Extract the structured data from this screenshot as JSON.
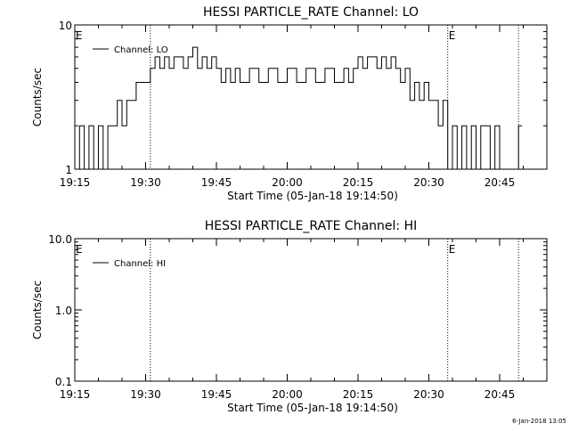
{
  "colors": {
    "background": "#ffffff",
    "foreground": "#000000"
  },
  "footer": {
    "timestamp": "6-Jan-2018 13:05"
  },
  "chart_data": [
    {
      "type": "line",
      "title": "HESSI PARTICLE_RATE Channel: LO",
      "xlabel": "Start Time (05-Jan-18 19:14:50)",
      "ylabel": "Counts/sec",
      "y_scale": "log",
      "xlim": [
        "19:15",
        "20:55"
      ],
      "ylim": [
        1,
        10
      ],
      "x_ticks": [
        "19:15",
        "19:30",
        "19:45",
        "20:00",
        "20:15",
        "20:30",
        "20:45"
      ],
      "y_ticks": [
        "1",
        "10"
      ],
      "legend": {
        "placement": "top-left",
        "entries": [
          "Channel: LO"
        ]
      },
      "markers": [
        {
          "label": "E",
          "x": "19:15"
        },
        {
          "label": "",
          "x": "19:31"
        },
        {
          "label": "E",
          "x": "20:34"
        },
        {
          "label": "",
          "x": "20:49"
        }
      ],
      "series": [
        {
          "name": "Channel: LO",
          "x": [
            "19:15",
            "19:16",
            "19:17",
            "19:18",
            "19:19",
            "19:20",
            "19:21",
            "19:22",
            "19:23",
            "19:24",
            "19:25",
            "19:26",
            "19:27",
            "19:28",
            "19:29",
            "19:30",
            "19:31",
            "19:32",
            "19:33",
            "19:34",
            "19:35",
            "19:36",
            "19:37",
            "19:38",
            "19:39",
            "19:40",
            "19:41",
            "19:42",
            "19:43",
            "19:44",
            "19:45",
            "19:46",
            "19:47",
            "19:48",
            "19:49",
            "19:50",
            "19:52",
            "19:54",
            "19:56",
            "19:58",
            "20:00",
            "20:02",
            "20:04",
            "20:06",
            "20:08",
            "20:10",
            "20:12",
            "20:13",
            "20:14",
            "20:15",
            "20:16",
            "20:17",
            "20:18",
            "20:19",
            "20:20",
            "20:21",
            "20:22",
            "20:23",
            "20:24",
            "20:25",
            "20:26",
            "20:27",
            "20:28",
            "20:29",
            "20:30",
            "20:31",
            "20:32",
            "20:33",
            "20:34",
            "20:35",
            "20:36",
            "20:37",
            "20:38",
            "20:39",
            "20:40",
            "20:41",
            "20:42",
            "20:43",
            "20:44",
            "20:45",
            "20:46",
            "20:47",
            "20:48",
            "20:49"
          ],
          "values": [
            1,
            2,
            1,
            2,
            1,
            2,
            1,
            2,
            2,
            3,
            2,
            3,
            3,
            4,
            4,
            4,
            5,
            6,
            5,
            6,
            5,
            6,
            6,
            5,
            6,
            7,
            5,
            6,
            5,
            6,
            5,
            4,
            5,
            4,
            5,
            4,
            5,
            4,
            5,
            4,
            5,
            4,
            5,
            4,
            5,
            4,
            5,
            4,
            5,
            6,
            5,
            6,
            6,
            5,
            6,
            5,
            6,
            5,
            4,
            5,
            3,
            4,
            3,
            4,
            3,
            3,
            2,
            3,
            1,
            2,
            1,
            2,
            1,
            2,
            1,
            2,
            2,
            1,
            2,
            1,
            1,
            1,
            1,
            2
          ]
        }
      ]
    },
    {
      "type": "line",
      "title": "HESSI PARTICLE_RATE Channel: HI",
      "xlabel": "Start Time (05-Jan-18 19:14:50)",
      "ylabel": "Counts/sec",
      "y_scale": "log",
      "xlim": [
        "19:15",
        "20:55"
      ],
      "ylim": [
        0.1,
        10
      ],
      "x_ticks": [
        "19:15",
        "19:30",
        "19:45",
        "20:00",
        "20:15",
        "20:30",
        "20:45"
      ],
      "y_ticks": [
        "0.1",
        "1.0",
        "10.0"
      ],
      "legend": {
        "placement": "top-left",
        "entries": [
          "Channel: HI"
        ]
      },
      "markers": [
        {
          "label": "E",
          "x": "19:15"
        },
        {
          "label": "",
          "x": "19:31"
        },
        {
          "label": "E",
          "x": "20:34"
        },
        {
          "label": "",
          "x": "20:49"
        }
      ],
      "series": [
        {
          "name": "Channel: HI",
          "x": [],
          "values": []
        }
      ]
    }
  ]
}
